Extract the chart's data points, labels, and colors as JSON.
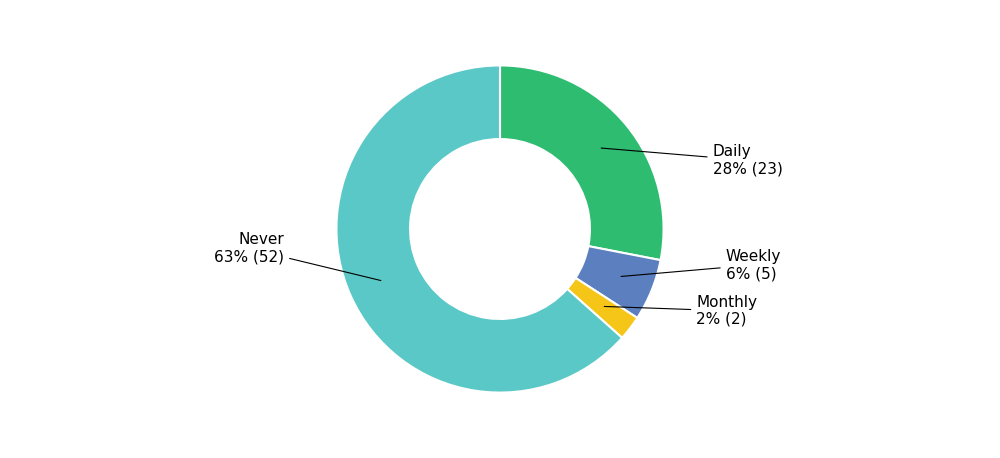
{
  "labels": [
    "Daily",
    "Weekly",
    "Monthly",
    "Never"
  ],
  "values": [
    23,
    5,
    2,
    52
  ],
  "colors": [
    "#2ebc71",
    "#5b7fbf",
    "#f5c518",
    "#5bc8c8"
  ],
  "wedge_labels": [
    "Daily\n28% (23)",
    "Weekly\n6% (5)",
    "Monthly\n2% (2)",
    "Never\n63% (52)"
  ],
  "title_fontsize": 14,
  "label_fontsize": 11,
  "startangle": 90,
  "background_color": "#ffffff"
}
